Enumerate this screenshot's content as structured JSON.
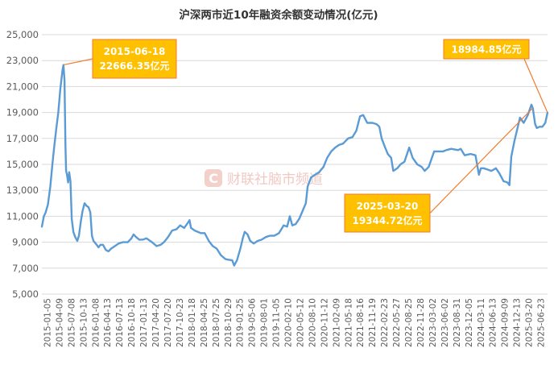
{
  "chart_data": {
    "type": "line",
    "title": "沪深两市近10年融资余额变动情况(亿元)",
    "xlabel": "",
    "ylabel": "",
    "ylim": [
      5000,
      25000
    ],
    "yticks": [
      5000,
      7000,
      9000,
      11000,
      13000,
      15000,
      17000,
      19000,
      21000,
      23000,
      25000
    ],
    "ytick_labels": [
      "5,000",
      "7,000",
      "9,000",
      "11,000",
      "13,000",
      "15,000",
      "17,000",
      "19,000",
      "21,000",
      "23,000",
      "25,000"
    ],
    "x_start": "2015-01-05",
    "x_end": "2025-07-10",
    "xtick_labels": [
      "2015-01-05",
      "2015-04-09",
      "2015-07-08",
      "2015-10-13",
      "2016-01-08",
      "2016-04-13",
      "2016-07-13",
      "2016-10-18",
      "2017-01-13",
      "2017-04-20",
      "2017-07-20",
      "2017-10-23",
      "2018-01-18",
      "2018-04-25",
      "2018-07-25",
      "2018-10-29",
      "2019-01-25",
      "2019-05-06",
      "2019-08-01",
      "2019-11-05",
      "2020-02-10",
      "2020-05-12",
      "2020-08-10",
      "2020-11-12",
      "2021-02-09",
      "2021-05-18",
      "2021-08-16",
      "2021-11-19",
      "2022-02-23",
      "2022-05-27",
      "2022-08-25",
      "2022-11-28",
      "2023-03-02",
      "2023-06-02",
      "2023-08-31",
      "2023-12-05",
      "2024-03-11",
      "2024-06-13",
      "2024-09-09",
      "2024-12-13",
      "2025-03-20",
      "2025-06-23"
    ],
    "grid": true,
    "legend": "none",
    "line_color": "#5b9bd5",
    "callout_color": "#ffc000",
    "callout_border": "#ed7d31",
    "series": [
      {
        "points": [
          [
            "2015-01-05",
            10200
          ],
          [
            "2015-01-20",
            11000
          ],
          [
            "2015-02-03",
            11300
          ],
          [
            "2015-02-20",
            11900
          ],
          [
            "2015-03-10",
            13300
          ],
          [
            "2015-03-25",
            14900
          ],
          [
            "2015-04-09",
            16400
          ],
          [
            "2015-04-25",
            17800
          ],
          [
            "2015-05-10",
            19000
          ],
          [
            "2015-05-25",
            20800
          ],
          [
            "2015-06-10",
            22200
          ],
          [
            "2015-06-18",
            22666.35
          ],
          [
            "2015-06-26",
            21500
          ],
          [
            "2015-07-03",
            16400
          ],
          [
            "2015-07-08",
            14500
          ],
          [
            "2015-07-15",
            14200
          ],
          [
            "2015-07-23",
            13600
          ],
          [
            "2015-07-31",
            14400
          ],
          [
            "2015-08-10",
            13700
          ],
          [
            "2015-08-20",
            10800
          ],
          [
            "2015-09-01",
            9800
          ],
          [
            "2015-09-15",
            9400
          ],
          [
            "2015-10-01",
            9100
          ],
          [
            "2015-10-13",
            9500
          ],
          [
            "2015-10-28",
            10600
          ],
          [
            "2015-11-10",
            11400
          ],
          [
            "2015-11-25",
            12000
          ],
          [
            "2015-12-10",
            11800
          ],
          [
            "2015-12-25",
            11700
          ],
          [
            "2016-01-08",
            11300
          ],
          [
            "2016-01-20",
            9500
          ],
          [
            "2016-02-01",
            9100
          ],
          [
            "2016-02-25",
            8800
          ],
          [
            "2016-03-10",
            8600
          ],
          [
            "2016-03-25",
            8800
          ],
          [
            "2016-04-13",
            8800
          ],
          [
            "2016-05-05",
            8400
          ],
          [
            "2016-05-25",
            8300
          ],
          [
            "2016-06-13",
            8500
          ],
          [
            "2016-07-13",
            8700
          ],
          [
            "2016-08-10",
            8900
          ],
          [
            "2016-09-10",
            9000
          ],
          [
            "2016-10-18",
            9000
          ],
          [
            "2016-11-15",
            9300
          ],
          [
            "2016-12-01",
            9600
          ],
          [
            "2016-12-20",
            9400
          ],
          [
            "2017-01-13",
            9200
          ],
          [
            "2017-02-10",
            9200
          ],
          [
            "2017-03-10",
            9300
          ],
          [
            "2017-04-20",
            9000
          ],
          [
            "2017-05-25",
            8700
          ],
          [
            "2017-06-25",
            8800
          ],
          [
            "2017-07-20",
            9000
          ],
          [
            "2017-08-20",
            9400
          ],
          [
            "2017-09-20",
            9900
          ],
          [
            "2017-10-23",
            10000
          ],
          [
            "2017-11-20",
            10300
          ],
          [
            "2017-12-20",
            10100
          ],
          [
            "2018-01-18",
            10500
          ],
          [
            "2018-01-30",
            10700
          ],
          [
            "2018-02-10",
            10100
          ],
          [
            "2018-03-10",
            9900
          ],
          [
            "2018-04-25",
            9700
          ],
          [
            "2018-05-25",
            9700
          ],
          [
            "2018-06-25",
            9100
          ],
          [
            "2018-07-25",
            8700
          ],
          [
            "2018-08-25",
            8500
          ],
          [
            "2018-09-25",
            8000
          ],
          [
            "2018-10-29",
            7700
          ],
          [
            "2018-11-20",
            7650
          ],
          [
            "2018-12-20",
            7600
          ],
          [
            "2019-01-04",
            7200
          ],
          [
            "2019-01-25",
            7600
          ],
          [
            "2019-02-20",
            8500
          ],
          [
            "2019-03-10",
            9300
          ],
          [
            "2019-03-25",
            9800
          ],
          [
            "2019-04-15",
            9600
          ],
          [
            "2019-05-06",
            9100
          ],
          [
            "2019-06-01",
            8900
          ],
          [
            "2019-07-01",
            9100
          ],
          [
            "2019-08-01",
            9200
          ],
          [
            "2019-09-01",
            9400
          ],
          [
            "2019-10-01",
            9500
          ],
          [
            "2019-11-05",
            9500
          ],
          [
            "2019-12-10",
            9700
          ],
          [
            "2020-01-15",
            10300
          ],
          [
            "2020-02-10",
            10200
          ],
          [
            "2020-03-01",
            11000
          ],
          [
            "2020-03-20",
            10300
          ],
          [
            "2020-04-15",
            10400
          ],
          [
            "2020-05-12",
            10800
          ],
          [
            "2020-06-10",
            11500
          ],
          [
            "2020-07-01",
            12000
          ],
          [
            "2020-07-15",
            13300
          ],
          [
            "2020-08-10",
            14000
          ],
          [
            "2020-09-10",
            14200
          ],
          [
            "2020-10-10",
            14400
          ],
          [
            "2020-11-12",
            14800
          ],
          [
            "2020-12-10",
            15500
          ],
          [
            "2021-01-10",
            16000
          ],
          [
            "2021-02-09",
            16300
          ],
          [
            "2021-03-10",
            16500
          ],
          [
            "2021-04-10",
            16600
          ],
          [
            "2021-05-18",
            17000
          ],
          [
            "2021-06-20",
            17100
          ],
          [
            "2021-07-20",
            17600
          ],
          [
            "2021-08-16",
            18700
          ],
          [
            "2021-09-10",
            18800
          ],
          [
            "2021-10-10",
            18200
          ],
          [
            "2021-11-19",
            18200
          ],
          [
            "2021-12-20",
            18100
          ],
          [
            "2022-01-10",
            17900
          ],
          [
            "2022-01-28",
            17000
          ],
          [
            "2022-02-23",
            16300
          ],
          [
            "2022-03-15",
            15800
          ],
          [
            "2022-04-10",
            15500
          ],
          [
            "2022-04-26",
            14500
          ],
          [
            "2022-05-27",
            14700
          ],
          [
            "2022-06-20",
            15000
          ],
          [
            "2022-07-20",
            15200
          ],
          [
            "2022-08-25",
            16300
          ],
          [
            "2022-09-20",
            15500
          ],
          [
            "2022-10-25",
            15000
          ],
          [
            "2022-11-28",
            14800
          ],
          [
            "2022-12-20",
            14500
          ],
          [
            "2023-01-20",
            14800
          ],
          [
            "2023-03-02",
            16000
          ],
          [
            "2023-04-10",
            16000
          ],
          [
            "2023-05-10",
            16000
          ],
          [
            "2023-06-02",
            16100
          ],
          [
            "2023-07-10",
            16200
          ],
          [
            "2023-08-31",
            16100
          ],
          [
            "2023-09-20",
            16200
          ],
          [
            "2023-10-20",
            15700
          ],
          [
            "2023-12-05",
            15800
          ],
          [
            "2024-01-10",
            15700
          ],
          [
            "2024-02-05",
            14200
          ],
          [
            "2024-02-20",
            14700
          ],
          [
            "2024-03-11",
            14700
          ],
          [
            "2024-04-10",
            14600
          ],
          [
            "2024-05-10",
            14500
          ],
          [
            "2024-06-13",
            14700
          ],
          [
            "2024-07-10",
            14300
          ],
          [
            "2024-08-10",
            13700
          ],
          [
            "2024-09-09",
            13600
          ],
          [
            "2024-09-24",
            13400
          ],
          [
            "2024-10-08",
            15600
          ],
          [
            "2024-11-01",
            16800
          ],
          [
            "2024-12-13",
            18600
          ],
          [
            "2025-01-10",
            18200
          ],
          [
            "2025-02-10",
            18800
          ],
          [
            "2025-03-10",
            19600
          ],
          [
            "2025-03-20",
            19344.72
          ],
          [
            "2025-04-07",
            18100
          ],
          [
            "2025-04-20",
            17800
          ],
          [
            "2025-05-10",
            17900
          ],
          [
            "2025-06-01",
            17900
          ],
          [
            "2025-06-23",
            18200
          ],
          [
            "2025-07-10",
            18984.85
          ]
        ]
      }
    ],
    "annotations": [
      {
        "date_label": "2015-06-18",
        "value_label": "22666.35亿元",
        "date": "2015-06-18",
        "value": 22666.35
      },
      {
        "date_label": "2025-03-20",
        "value_label": "19344.72亿元",
        "date": "2025-03-20",
        "value": 19344.72
      },
      {
        "date_label": "",
        "value_label": "18984.85亿元",
        "date": "2025-07-10",
        "value": 18984.85
      }
    ],
    "watermark": {
      "logo_letter": "C",
      "text": "财联社脑市频道"
    }
  }
}
